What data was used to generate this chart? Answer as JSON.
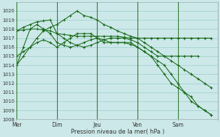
{
  "title": "Pression niveau de la mer( hPa )",
  "background_color": "#cce8e8",
  "grid_color": "#99cccc",
  "line_color": "#1a6b1a",
  "vline_color": "#2d7a2d",
  "xlim": [
    0,
    30
  ],
  "ylim": [
    1008,
    1021
  ],
  "yticks": [
    1008,
    1009,
    1010,
    1011,
    1012,
    1013,
    1014,
    1015,
    1016,
    1017,
    1018,
    1019,
    1020
  ],
  "xtick_positions": [
    0,
    6,
    12,
    18,
    24,
    30
  ],
  "xtick_labels": [
    "Mer",
    "Dim",
    "Jeu",
    "Ven",
    "Sam",
    ""
  ],
  "vlines": [
    0,
    6,
    12,
    18,
    24,
    30
  ],
  "series": [
    {
      "x": [
        0,
        1,
        2,
        3,
        4,
        5,
        6,
        7,
        8,
        9,
        10,
        11,
        12,
        13,
        14,
        15,
        16,
        17,
        18,
        19,
        20,
        21,
        22,
        23,
        24,
        25,
        26,
        27,
        28,
        29
      ],
      "y": [
        1017.8,
        1017.9,
        1018.0,
        1018.0,
        1017.9,
        1017.8,
        1017.5,
        1017.4,
        1017.3,
        1017.2,
        1017.2,
        1017.2,
        1017.2,
        1017.2,
        1017.2,
        1017.2,
        1017.1,
        1017.0,
        1017.0,
        1017.0,
        1017.0,
        1017.0,
        1017.0,
        1017.0,
        1017.0,
        1017.0,
        1017.0,
        1017.0,
        1017.0,
        1017.0
      ],
      "marker": "+"
    },
    {
      "x": [
        0,
        1,
        2,
        3,
        4,
        5,
        6,
        7,
        8,
        9,
        10,
        11,
        12,
        13,
        14,
        15,
        16,
        17,
        18,
        19,
        20,
        21,
        22,
        23,
        24,
        25,
        26,
        27
      ],
      "y": [
        1017.8,
        1018.2,
        1018.5,
        1018.8,
        1018.9,
        1019.0,
        1017.5,
        1017.0,
        1016.5,
        1016.2,
        1016.0,
        1016.2,
        1016.5,
        1016.8,
        1017.0,
        1017.0,
        1017.0,
        1016.8,
        1016.5,
        1016.0,
        1015.5,
        1015.0,
        1015.0,
        1015.0,
        1015.0,
        1015.0,
        1015.0,
        1015.0
      ],
      "marker": "+"
    },
    {
      "x": [
        0,
        1,
        2,
        3,
        4,
        5,
        6,
        7,
        8,
        9,
        10,
        11,
        12,
        13,
        14,
        15,
        16,
        17,
        18,
        19,
        20,
        21,
        22,
        23,
        24,
        25,
        26,
        27,
        28,
        29
      ],
      "y": [
        1014.0,
        1015.0,
        1016.0,
        1017.0,
        1017.8,
        1018.2,
        1018.5,
        1019.0,
        1019.5,
        1020.0,
        1019.5,
        1019.3,
        1019.0,
        1018.5,
        1018.2,
        1017.8,
        1017.5,
        1017.2,
        1017.0,
        1016.5,
        1016.0,
        1015.5,
        1015.0,
        1014.5,
        1014.0,
        1013.5,
        1013.0,
        1012.5,
        1012.0,
        1011.5
      ],
      "marker": "+"
    },
    {
      "x": [
        0,
        1,
        2,
        3,
        4,
        5,
        6,
        7,
        8,
        9,
        10,
        11,
        12,
        13,
        14,
        15,
        16,
        17,
        18,
        19,
        20,
        21,
        22,
        23,
        24,
        25,
        26,
        27,
        28,
        29
      ],
      "y": [
        1015.0,
        1015.5,
        1016.0,
        1016.5,
        1016.8,
        1016.5,
        1016.0,
        1016.5,
        1017.0,
        1017.5,
        1017.5,
        1017.5,
        1017.0,
        1016.5,
        1016.5,
        1016.5,
        1016.5,
        1016.5,
        1016.0,
        1015.5,
        1015.0,
        1014.5,
        1014.0,
        1013.0,
        1012.0,
        1011.0,
        1010.5,
        1009.5,
        1009.0,
        1008.5
      ],
      "marker": "+"
    },
    {
      "x": [
        0,
        1,
        2,
        3,
        4,
        5,
        6,
        7,
        8,
        9,
        10,
        11,
        12,
        13,
        14,
        15,
        16,
        17,
        18,
        19,
        20,
        21,
        22,
        23,
        24,
        25,
        26,
        27,
        28,
        29
      ],
      "y": [
        1014.0,
        1016.0,
        1018.0,
        1018.5,
        1018.0,
        1017.5,
        1016.5,
        1016.2,
        1016.0,
        1016.2,
        1016.5,
        1016.8,
        1017.0,
        1016.8,
        1016.5,
        1016.5,
        1016.5,
        1016.3,
        1016.0,
        1015.5,
        1015.0,
        1014.0,
        1013.0,
        1012.0,
        1011.5,
        1011.0,
        1010.0,
        1009.5,
        1009.0,
        1008.5
      ],
      "marker": "+"
    }
  ]
}
